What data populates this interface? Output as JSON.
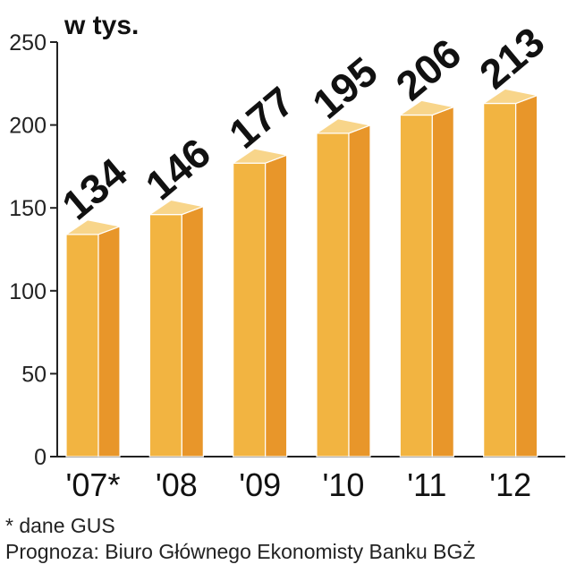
{
  "chart_data": {
    "type": "bar",
    "unit_label": "w tys.",
    "categories": [
      "'07*",
      "'08",
      "'09",
      "'10",
      "'11",
      "'12"
    ],
    "values": [
      134,
      146,
      177,
      195,
      206,
      213
    ],
    "ylim": [
      0,
      250
    ],
    "yticks": [
      0,
      50,
      100,
      150,
      200,
      250
    ],
    "grid": false,
    "colors": {
      "front": "#F2B441",
      "side": "#E8962A",
      "top": "#F8D58A",
      "axis": "#222222"
    }
  },
  "footnotes": {
    "note": "* dane GUS",
    "source": "Prognoza: Biuro Głównego Ekonomisty Banku BGŻ"
  }
}
